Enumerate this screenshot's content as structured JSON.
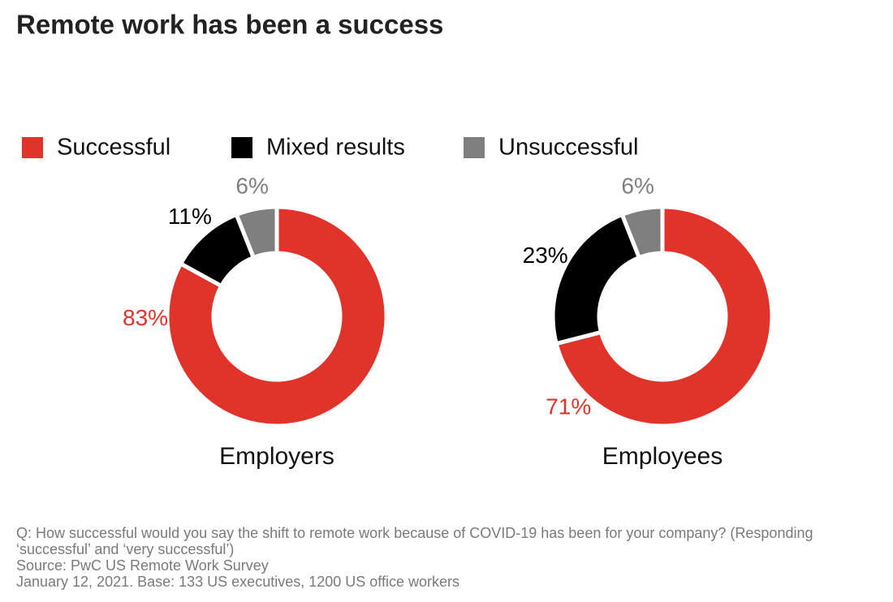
{
  "title": "Remote work has been a success",
  "chart_data": [
    {
      "type": "donut",
      "title": "Employers",
      "categories": [
        "Successful",
        "Mixed results",
        "Unsuccessful"
      ],
      "values": [
        83,
        11,
        6
      ],
      "value_labels": [
        "83%",
        "11%",
        "6%"
      ],
      "colors": [
        "#e0332a",
        "#000000",
        "#7f7f7f"
      ]
    },
    {
      "type": "donut",
      "title": "Employees",
      "categories": [
        "Successful",
        "Mixed results",
        "Unsuccessful"
      ],
      "values": [
        71,
        23,
        6
      ],
      "value_labels": [
        "71%",
        "23%",
        "6%"
      ],
      "colors": [
        "#e0332a",
        "#000000",
        "#7f7f7f"
      ]
    }
  ],
  "notes": [
    "Q: How successful would you say the shift to remote work because of COVID-19 has been for your company? (Responding ‘successful’ and ‘very successful’)",
    "Source: PwC US Remote Work Survey",
    "January 12, 2021. Base: 133 US executives, 1200 US office workers"
  ]
}
